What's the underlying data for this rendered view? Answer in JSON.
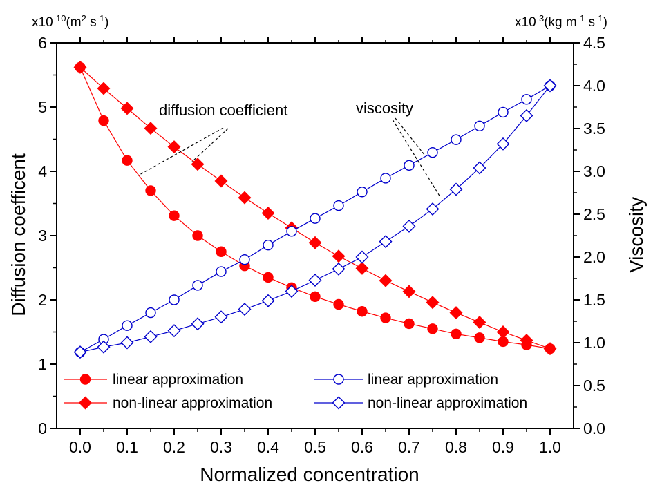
{
  "chart_data": {
    "type": "line",
    "xlabel": "Normalized concentration",
    "ylabel_left": "Diffusion coefficent",
    "ylabel_right": "Viscosity",
    "unit_left": {
      "prefix": "x10",
      "exp": "-10",
      "unit_open": "(m",
      "unit_exp": "2",
      "unit_close": " s",
      "unit_exp2": "-1",
      "tail": ")"
    },
    "unit_right": {
      "prefix": "x10",
      "exp": "-3",
      "unit_open": "(kg m",
      "unit_exp": "-1",
      "unit_close": " s",
      "unit_exp2": "-1",
      "tail": ")"
    },
    "xlim": [
      -0.05,
      1.05
    ],
    "ylim_left": [
      0,
      6
    ],
    "ylim_right": [
      0,
      4.5
    ],
    "x_ticks": [
      "0.0",
      "0.1",
      "0.2",
      "0.3",
      "0.4",
      "0.5",
      "0.6",
      "0.7",
      "0.8",
      "0.9",
      "1.0"
    ],
    "y_left_ticks": [
      "0",
      "1",
      "2",
      "3",
      "4",
      "5",
      "6"
    ],
    "y_right_ticks": [
      "0.0",
      "0.5",
      "1.0",
      "1.5",
      "2.0",
      "2.5",
      "3.0",
      "3.5",
      "4.0",
      "4.5"
    ],
    "x": [
      0,
      0.05,
      0.1,
      0.15,
      0.2,
      0.25,
      0.3,
      0.35,
      0.4,
      0.45,
      0.5,
      0.55,
      0.6,
      0.65,
      0.7,
      0.75,
      0.8,
      0.85,
      0.9,
      0.95,
      1.0
    ],
    "series": [
      {
        "name": "linear approximation",
        "axis": "left",
        "marker": "circle-filled",
        "color": "#ff0000",
        "values": [
          5.62,
          4.79,
          4.17,
          3.7,
          3.31,
          3.0,
          2.75,
          2.53,
          2.35,
          2.19,
          2.05,
          1.93,
          1.82,
          1.72,
          1.63,
          1.55,
          1.47,
          1.41,
          1.35,
          1.3,
          1.24
        ]
      },
      {
        "name": "non-linear approximation",
        "axis": "left",
        "marker": "diamond-filled",
        "color": "#ff0000",
        "values": [
          5.62,
          5.29,
          4.98,
          4.67,
          4.38,
          4.11,
          3.85,
          3.59,
          3.35,
          3.12,
          2.89,
          2.68,
          2.49,
          2.3,
          2.13,
          1.96,
          1.8,
          1.65,
          1.5,
          1.37,
          1.24
        ]
      },
      {
        "name": "linear approximation",
        "axis": "right",
        "marker": "circle-open",
        "color": "#0000cc",
        "values": [
          0.89,
          1.04,
          1.2,
          1.35,
          1.5,
          1.67,
          1.83,
          1.97,
          2.14,
          2.3,
          2.45,
          2.6,
          2.76,
          2.92,
          3.07,
          3.22,
          3.37,
          3.53,
          3.69,
          3.84,
          4.0
        ]
      },
      {
        "name": "non-linear approximation",
        "axis": "right",
        "marker": "diamond-open",
        "color": "#0000cc",
        "values": [
          0.89,
          0.95,
          1.0,
          1.07,
          1.14,
          1.22,
          1.3,
          1.39,
          1.49,
          1.6,
          1.73,
          1.86,
          2.0,
          2.18,
          2.36,
          2.56,
          2.79,
          3.04,
          3.32,
          3.65,
          4.0
        ]
      }
    ],
    "annotations": [
      {
        "text": "diffusion coefficient"
      },
      {
        "text": "viscosity"
      }
    ],
    "legend": {
      "placement": "bottom",
      "entries": [
        {
          "label": "linear approximation"
        },
        {
          "label": "linear approximation"
        },
        {
          "label": "non-linear approximation"
        },
        {
          "label": "non-linear approximation"
        }
      ]
    }
  }
}
